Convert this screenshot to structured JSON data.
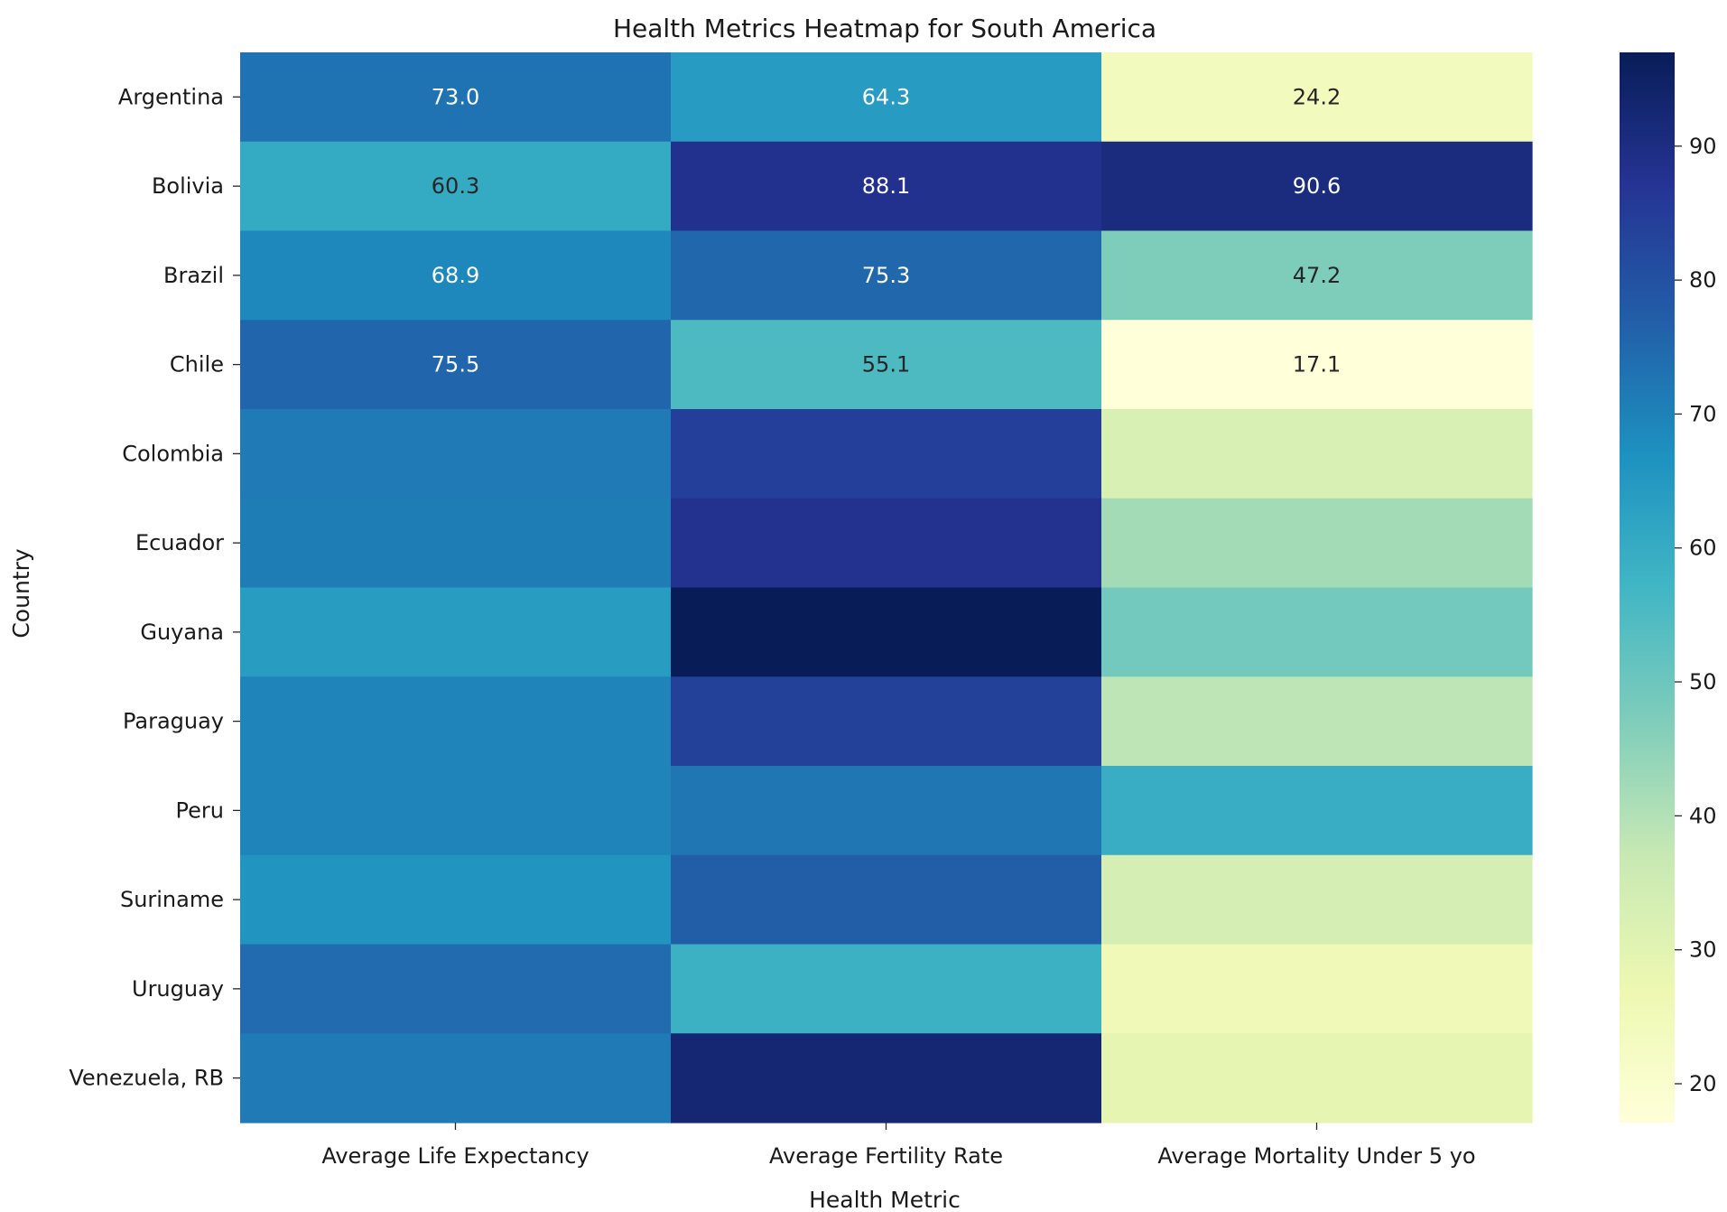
{
  "chart_data": {
    "type": "heatmap",
    "title": "Health Metrics Heatmap for South America",
    "xlabel": "Health Metric",
    "ylabel": "Country",
    "columns": [
      "Average Life Expectancy",
      "Average Fertility Rate",
      "Average Mortality Under 5 yo"
    ],
    "rows": [
      "Argentina",
      "Bolivia",
      "Brazil",
      "Chile",
      "Colombia",
      "Ecuador",
      "Guyana",
      "Paraguay",
      "Peru",
      "Suriname",
      "Uruguay",
      "Venezuela, RB"
    ],
    "values": [
      [
        73.0,
        64.3,
        24.2
      ],
      [
        60.3,
        88.1,
        90.6
      ],
      [
        68.9,
        75.3,
        47.2
      ],
      [
        75.5,
        55.1,
        17.1
      ],
      [
        71.5,
        84.5,
        32.5
      ],
      [
        71.0,
        88.0,
        42.0
      ],
      [
        64.0,
        97.0,
        49.0
      ],
      [
        69.5,
        84.0,
        38.5
      ],
      [
        69.5,
        72.5,
        59.5
      ],
      [
        66.0,
        77.0,
        33.5
      ],
      [
        74.5,
        58.5,
        25.0
      ],
      [
        71.5,
        92.5,
        29.0
      ]
    ],
    "annotations": [
      [
        "73.0",
        "64.3",
        "24.2"
      ],
      [
        "60.3",
        "88.1",
        "90.6"
      ],
      [
        "68.9",
        "75.3",
        "47.2"
      ],
      [
        "75.5",
        "55.1",
        "17.1"
      ],
      [
        "",
        "",
        ""
      ],
      [
        "",
        "",
        ""
      ],
      [
        "",
        "",
        ""
      ],
      [
        "",
        "",
        ""
      ],
      [
        "",
        "",
        ""
      ],
      [
        "",
        "",
        ""
      ],
      [
        "",
        "",
        ""
      ],
      [
        "",
        "",
        ""
      ]
    ],
    "colormap": "YlGnBu",
    "colorbar": {
      "range": [
        17.1,
        97.0
      ],
      "ticks": [
        20,
        30,
        40,
        50,
        60,
        70,
        80,
        90
      ]
    }
  }
}
